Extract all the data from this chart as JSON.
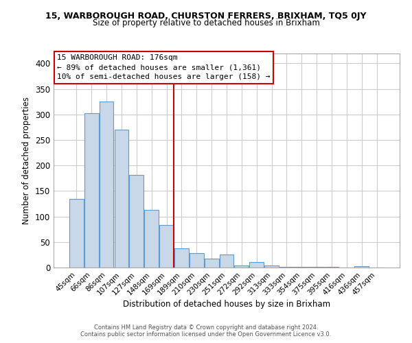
{
  "title": "15, WARBOROUGH ROAD, CHURSTON FERRERS, BRIXHAM, TQ5 0JY",
  "subtitle": "Size of property relative to detached houses in Brixham",
  "xlabel": "Distribution of detached houses by size in Brixham",
  "ylabel": "Number of detached properties",
  "bar_color": "#c8d8e8",
  "bar_edge_color": "#5b9bd5",
  "categories": [
    "45sqm",
    "66sqm",
    "86sqm",
    "107sqm",
    "127sqm",
    "148sqm",
    "169sqm",
    "189sqm",
    "210sqm",
    "230sqm",
    "251sqm",
    "272sqm",
    "292sqm",
    "313sqm",
    "333sqm",
    "354sqm",
    "375sqm",
    "395sqm",
    "416sqm",
    "436sqm",
    "457sqm"
  ],
  "values": [
    135,
    303,
    325,
    270,
    181,
    113,
    83,
    37,
    28,
    17,
    25,
    4,
    11,
    4,
    1,
    1,
    2,
    1,
    0,
    3,
    0
  ],
  "ylim": [
    0,
    420
  ],
  "yticks": [
    0,
    50,
    100,
    150,
    200,
    250,
    300,
    350,
    400
  ],
  "vline_color": "#cc0000",
  "annotation_title": "15 WARBOROUGH ROAD: 176sqm",
  "annotation_line1": "← 89% of detached houses are smaller (1,361)",
  "annotation_line2": "10% of semi-detached houses are larger (158) →",
  "footer1": "Contains HM Land Registry data © Crown copyright and database right 2024.",
  "footer2": "Contains public sector information licensed under the Open Government Licence v3.0.",
  "background_color": "#ffffff",
  "grid_color": "#cccccc"
}
